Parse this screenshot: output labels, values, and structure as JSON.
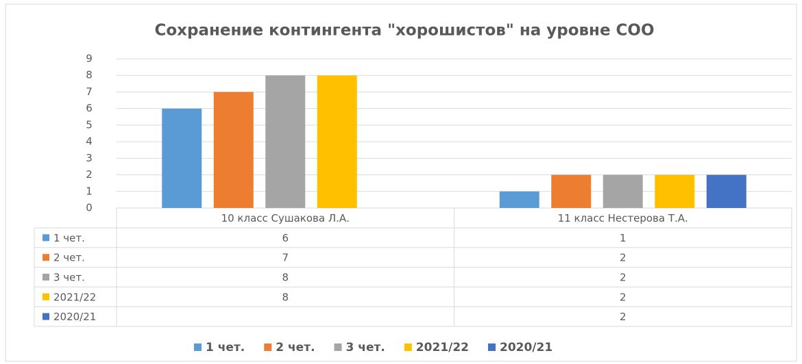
{
  "chart_data": {
    "type": "bar",
    "title": "Сохранение контингента \"хорошистов\" на уровне СОО",
    "categories": [
      "10 класс Сушакова Л.А.",
      "11 класс Нестерова Т.А."
    ],
    "series": [
      {
        "name": "1 чет.",
        "color": "#5b9bd5",
        "values": [
          6,
          1
        ]
      },
      {
        "name": "2 чет.",
        "color": "#ed7d31",
        "values": [
          7,
          2
        ]
      },
      {
        "name": "3 чет.",
        "color": "#a5a5a5",
        "values": [
          8,
          2
        ]
      },
      {
        "name": "2021/22",
        "color": "#ffc000",
        "values": [
          8,
          2
        ]
      },
      {
        "name": "2020/21",
        "color": "#4472c4",
        "values": [
          null,
          2
        ]
      }
    ],
    "ylim": [
      0,
      9
    ],
    "yticks": [
      0,
      1,
      2,
      3,
      4,
      5,
      6,
      7,
      8,
      9
    ],
    "grid": true,
    "legend": "bottom",
    "data_table": true
  }
}
